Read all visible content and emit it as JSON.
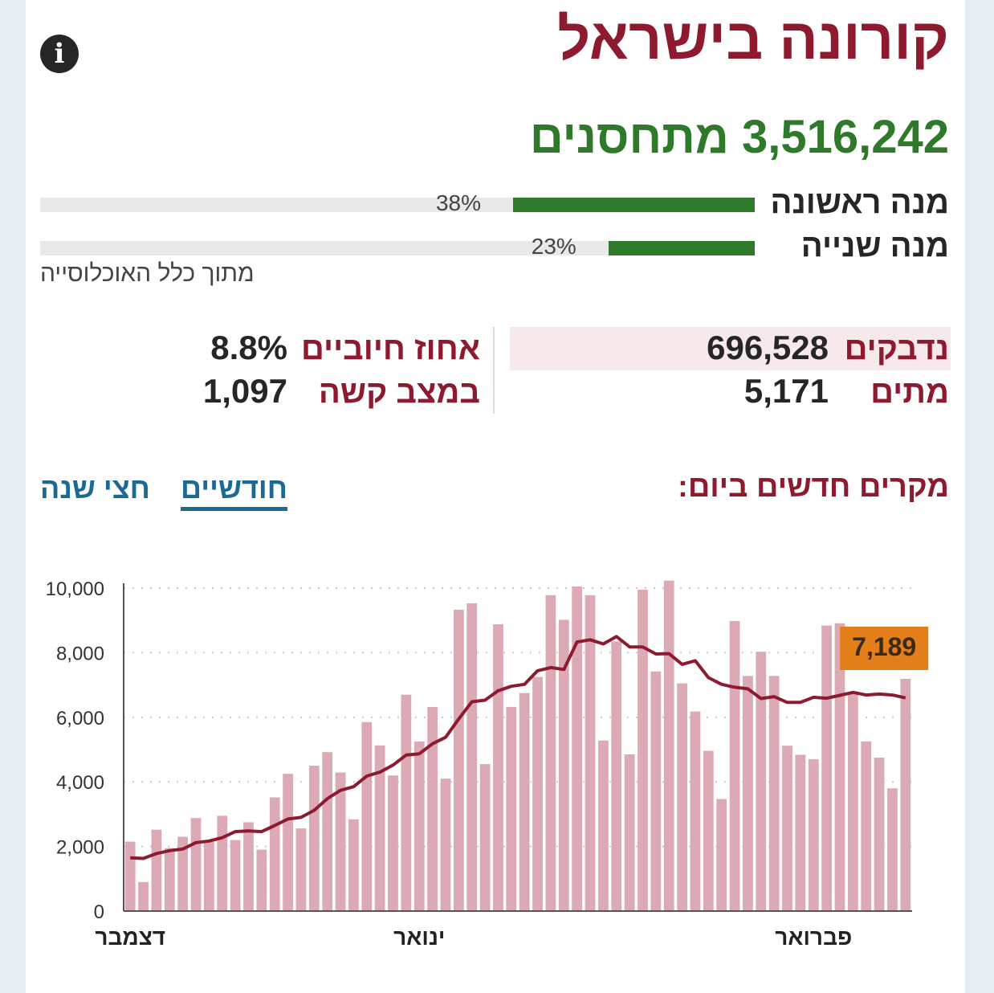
{
  "header": {
    "title": "קורונה בישראל",
    "info_icon": "info-icon"
  },
  "vaccination": {
    "total_text": "3,516,242 מתחסנים",
    "doses": [
      {
        "label": "מנה ראשונה",
        "percent": 38,
        "percent_label": "38%"
      },
      {
        "label": "מנה שנייה",
        "percent": 23,
        "percent_label": "23%"
      }
    ],
    "note": "מתוך כלל האוכלוסייה"
  },
  "stats": {
    "infected": {
      "label": "נדבקים",
      "value": "696,528"
    },
    "deaths": {
      "label": "מתים",
      "value": "5,171"
    },
    "positive_rate": {
      "label": "אחוז חיוביים",
      "value": "8.8%"
    },
    "severe": {
      "label": "במצב קשה",
      "value": "1,097"
    }
  },
  "new_cases": {
    "title": "מקרים חדשים ביום:",
    "tabs": [
      {
        "label": "חודשיים",
        "active": true
      },
      {
        "label": "חצי שנה",
        "active": false
      }
    ]
  },
  "colors": {
    "brand": "#8e1a30",
    "vaccine": "#2e7a2a",
    "bar": "#dcaab4",
    "highlight_bar": "#e9a24c",
    "callout": "#e37f1b",
    "tab": "#1c6a93"
  },
  "chart_data": {
    "type": "bar",
    "ylim": [
      0,
      10000
    ],
    "yticks": [
      "0",
      "2,000",
      "4,000",
      "6,000",
      "8,000",
      "10,000"
    ],
    "xlabels": [
      "דצמבר",
      "ינואר",
      "פברואר"
    ],
    "xlabel_day_index": [
      0,
      22,
      52
    ],
    "grid": true,
    "highlight": {
      "index": 60,
      "value": 7189,
      "label": "7,189"
    },
    "series": [
      {
        "type": "bar",
        "values": [
          2150,
          900,
          2520,
          1950,
          2300,
          2880,
          2150,
          2950,
          2200,
          2750,
          1900,
          3520,
          4250,
          2560,
          4500,
          4920,
          4290,
          2840,
          5850,
          5130,
          4200,
          6700,
          5250,
          6320,
          4100,
          9330,
          9530,
          4550,
          8880,
          6320,
          6750,
          7250,
          9780,
          9020,
          10050,
          9780,
          5280,
          8350,
          4850,
          9950,
          7420,
          10230,
          7050,
          6180,
          4960,
          3470,
          8980,
          7280,
          8030,
          7280,
          5120,
          4840,
          4700,
          8840,
          8910,
          6730,
          5250,
          4750,
          3800,
          7189
        ]
      },
      {
        "type": "line",
        "name": "",
        "values": [
          1650,
          1630,
          1780,
          1870,
          1920,
          2120,
          2170,
          2270,
          2460,
          2480,
          2460,
          2650,
          2850,
          2900,
          3120,
          3480,
          3740,
          3850,
          4180,
          4300,
          4520,
          4830,
          4870,
          5180,
          5380,
          5950,
          6480,
          6530,
          6820,
          6960,
          7020,
          7440,
          7540,
          7480,
          8330,
          8400,
          8270,
          8500,
          8180,
          8180,
          7960,
          7970,
          7640,
          7750,
          7230,
          7020,
          6930,
          6880,
          6580,
          6640,
          6460,
          6460,
          6620,
          6590,
          6680,
          6770,
          6690,
          6720,
          6690,
          6600
        ]
      }
    ]
  }
}
